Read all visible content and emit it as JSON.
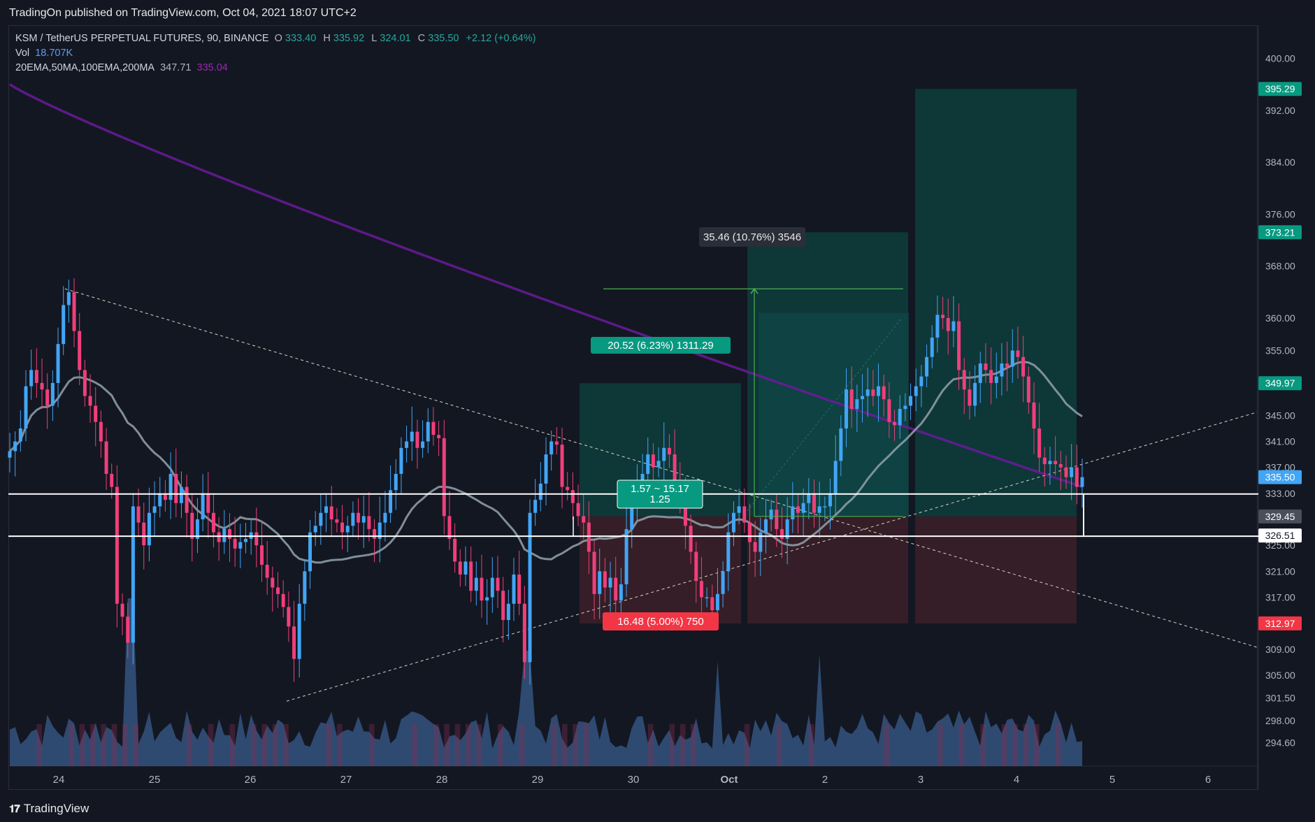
{
  "header": {
    "published": "TradingOn published on TradingView.com, Oct 04, 2021 18:07 UTC+2"
  },
  "legend": {
    "symbol": "KSM / TetherUS PERPETUAL FUTURES, 90, BINANCE",
    "o_label": "O",
    "o": "333.40",
    "h_label": "H",
    "h": "335.92",
    "l_label": "L",
    "l": "324.01",
    "c_label": "C",
    "c": "335.50",
    "change": "+2.12 (+0.64%)",
    "vol_label": "Vol",
    "vol": "18.707K",
    "ma_label": "20EMA,50MA,100EMA,200MA",
    "ma_v1": "347.71",
    "ma_v2": "335.04"
  },
  "footer": {
    "brand": "TradingView",
    "brand_icon": "tradingview-logo-icon"
  },
  "colors": {
    "up": "#42a5f5",
    "down": "#ef3f7a",
    "ma200": "#6a1b9a",
    "ma50": "#8c9ba5",
    "profit_zone": "#0e3b3b",
    "loss_zone": "#3a1f28",
    "label_green": "#089981",
    "label_red": "#f23645"
  },
  "chart_data": {
    "type": "candlestick",
    "symbol": "KSM / TetherUS PERPETUAL FUTURES",
    "interval": "90",
    "exchange": "BINANCE",
    "ylim": [
      291,
      405
    ],
    "yticks": [
      400.0,
      392.0,
      384.0,
      376.0,
      368.0,
      360.0,
      355.0,
      345.0,
      341.0,
      337.0,
      333.0,
      325.0,
      321.0,
      317.0,
      309.0,
      305.0,
      301.5,
      298.0,
      294.6
    ],
    "xticks": [
      "24",
      "25",
      "26",
      "27",
      "28",
      "29",
      "30",
      "Oct",
      "2",
      "3",
      "4",
      "5",
      "6"
    ],
    "price_markers": [
      {
        "value": 395.29,
        "label": "395.29",
        "kind": "tp"
      },
      {
        "value": 373.21,
        "label": "373.21",
        "kind": "tp"
      },
      {
        "value": 349.97,
        "label": "349.97",
        "kind": "tp"
      },
      {
        "value": 335.5,
        "label": "335.50",
        "kind": "last"
      },
      {
        "value": 329.45,
        "label": "329.45",
        "kind": "entry"
      },
      {
        "value": 326.51,
        "label": "326.51",
        "kind": "line"
      },
      {
        "value": 312.97,
        "label": "312.97",
        "kind": "sl"
      }
    ],
    "horizontal_levels": [
      332.9,
      326.4
    ],
    "annotations": [
      {
        "text": "35.46 (10.76%) 3546",
        "kind": "measure"
      },
      {
        "text": "20.52 (6.23%) 1311.29",
        "kind": "profit"
      },
      {
        "text": "16.48 (5.00%) 750",
        "kind": "loss"
      },
      {
        "text": "1.57 ~ 15.17",
        "kind": "ratio"
      },
      {
        "text": "1.25",
        "kind": "ratio"
      }
    ],
    "position_tools": [
      {
        "entry": 329.45,
        "target": 349.97,
        "stop": 312.97
      },
      {
        "entry": 329.45,
        "target": 373.21,
        "stop": 312.97
      },
      {
        "entry": 329.45,
        "target": 395.29,
        "stop": 312.97
      }
    ],
    "ma200_last": 335.04,
    "ma50_last": 347.71,
    "closes": [
      339.5,
      341.0,
      343.0,
      349.5,
      352.0,
      350.0,
      349.0,
      346.5,
      350.0,
      356.0,
      362.0,
      364.0,
      358.0,
      352.0,
      348.0,
      346.5,
      344.0,
      341.0,
      336.0,
      334.0,
      316.0,
      314.0,
      310.0,
      331.0,
      328.5,
      325.0,
      330.0,
      331.0,
      333.0,
      332.0,
      336.0,
      331.5,
      334.0,
      330.0,
      326.0,
      329.0,
      333.0,
      330.0,
      327.0,
      325.5,
      327.5,
      326.0,
      324.5,
      325.5,
      326.0,
      327.0,
      325.0,
      322.0,
      320.0,
      318.5,
      317.5,
      315.5,
      312.5,
      307.5,
      316.0,
      321.0,
      327.0,
      328.0,
      330.0,
      331.0,
      329.0,
      328.5,
      327.0,
      328.0,
      330.0,
      328.5,
      329.5,
      327.5,
      326.0,
      328.5,
      330.0,
      333.5,
      336.0,
      340.0,
      341.0,
      342.5,
      340.0,
      341.0,
      344.0,
      342.0,
      341.5,
      329.5,
      326.0,
      322.5,
      320.5,
      322.5,
      318.0,
      320.0,
      316.5,
      317.0,
      320.0,
      318.0,
      313.5,
      316.0,
      320.5,
      316.0,
      307.0,
      330.0,
      332.0,
      334.5,
      339.0,
      341.0,
      340.5,
      334.0,
      333.5,
      331.5,
      329.5,
      328.5,
      324.0,
      317.5,
      321.0,
      318.5,
      320.0,
      316.5,
      319.0,
      327.5,
      331.0,
      334.5,
      336.0,
      339.0,
      337.0,
      338.0,
      340.0,
      339.0,
      334.5,
      333.0,
      328.0,
      324.0,
      319.5,
      317.0,
      317.0,
      315.0,
      317.5,
      321.0,
      327.0,
      330.0,
      331.0,
      328.5,
      325.5,
      324.0,
      327.0,
      329.0,
      330.5,
      327.5,
      326.0,
      329.0,
      331.0,
      330.0,
      331.5,
      333.0,
      330.0,
      331.0,
      331.0,
      333.0,
      338.0,
      343.0,
      349.0,
      346.0,
      347.5,
      348.0,
      349.0,
      348.0,
      349.5,
      347.5,
      344.0,
      343.5,
      346.0,
      346.5,
      348.0,
      349.5,
      351.0,
      354.0,
      357.0,
      360.5,
      360.0,
      358.0,
      359.5,
      352.0,
      349.0,
      346.5,
      350.0,
      353.0,
      352.0,
      350.0,
      351.0,
      353.0,
      352.5,
      355.0,
      354.0,
      351.0,
      347.0,
      343.0,
      338.5,
      337.5,
      338.0,
      337.5,
      337.0,
      335.5,
      337.0,
      334.0,
      335.5
    ]
  }
}
